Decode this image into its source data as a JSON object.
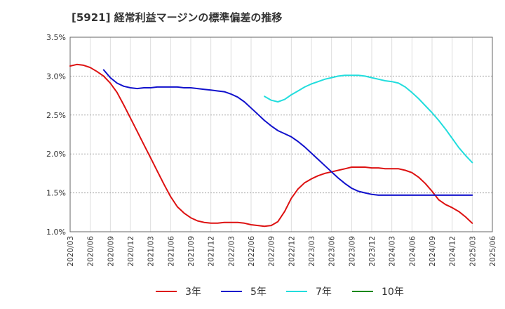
{
  "title": "[5921]  経常利益マージンの標準偏差の推移",
  "chart_data": {
    "type": "line",
    "title": "[5921]  経常利益マージンの標準偏差の推移",
    "xlabel": "",
    "ylabel": "",
    "x": [
      "2020/03",
      "2020/06",
      "2020/09",
      "2020/12",
      "2021/03",
      "2021/06",
      "2021/09",
      "2021/12",
      "2022/03",
      "2022/06",
      "2022/09",
      "2022/12",
      "2023/03",
      "2023/06",
      "2023/09",
      "2023/12",
      "2024/03",
      "2024/06",
      "2024/09",
      "2024/12",
      "2025/03",
      "2025/06"
    ],
    "ylim": [
      1.0,
      3.5
    ],
    "yticks": [
      "1.0%",
      "1.5%",
      "2.0%",
      "2.5%",
      "3.0%",
      "3.5%"
    ],
    "grid": true,
    "legend_position": "bottom",
    "series": [
      {
        "name": "3年",
        "color": "#dd1111",
        "points": [
          [
            "2020/03",
            3.13
          ],
          [
            "2020/04",
            3.15
          ],
          [
            "2020/05",
            3.14
          ],
          [
            "2020/06",
            3.11
          ],
          [
            "2020/07",
            3.06
          ],
          [
            "2020/08",
            3.0
          ],
          [
            "2020/09",
            2.91
          ],
          [
            "2020/10",
            2.79
          ],
          [
            "2020/11",
            2.63
          ],
          [
            "2020/12",
            2.46
          ],
          [
            "2021/01",
            2.29
          ],
          [
            "2021/02",
            2.12
          ],
          [
            "2021/03",
            1.95
          ],
          [
            "2021/04",
            1.78
          ],
          [
            "2021/05",
            1.61
          ],
          [
            "2021/06",
            1.45
          ],
          [
            "2021/07",
            1.32
          ],
          [
            "2021/08",
            1.24
          ],
          [
            "2021/09",
            1.18
          ],
          [
            "2021/10",
            1.14
          ],
          [
            "2021/11",
            1.12
          ],
          [
            "2021/12",
            1.11
          ],
          [
            "2022/01",
            1.11
          ],
          [
            "2022/02",
            1.12
          ],
          [
            "2022/03",
            1.12
          ],
          [
            "2022/04",
            1.12
          ],
          [
            "2022/05",
            1.11
          ],
          [
            "2022/06",
            1.09
          ],
          [
            "2022/07",
            1.08
          ],
          [
            "2022/08",
            1.07
          ],
          [
            "2022/09",
            1.08
          ],
          [
            "2022/10",
            1.13
          ],
          [
            "2022/11",
            1.26
          ],
          [
            "2022/12",
            1.43
          ],
          [
            "2023/01",
            1.55
          ],
          [
            "2023/02",
            1.63
          ],
          [
            "2023/03",
            1.68
          ],
          [
            "2023/04",
            1.72
          ],
          [
            "2023/05",
            1.75
          ],
          [
            "2023/06",
            1.77
          ],
          [
            "2023/07",
            1.79
          ],
          [
            "2023/08",
            1.81
          ],
          [
            "2023/09",
            1.83
          ],
          [
            "2023/10",
            1.83
          ],
          [
            "2023/11",
            1.83
          ],
          [
            "2023/12",
            1.82
          ],
          [
            "2024/01",
            1.82
          ],
          [
            "2024/02",
            1.81
          ],
          [
            "2024/03",
            1.81
          ],
          [
            "2024/04",
            1.81
          ],
          [
            "2024/05",
            1.79
          ],
          [
            "2024/06",
            1.76
          ],
          [
            "2024/07",
            1.7
          ],
          [
            "2024/08",
            1.62
          ],
          [
            "2024/09",
            1.52
          ],
          [
            "2024/10",
            1.41
          ],
          [
            "2024/11",
            1.35
          ],
          [
            "2024/12",
            1.31
          ],
          [
            "2025/01",
            1.26
          ],
          [
            "2025/02",
            1.19
          ],
          [
            "2025/03",
            1.11
          ]
        ]
      },
      {
        "name": "5年",
        "color": "#1111cc",
        "points": [
          [
            "2020/08",
            3.08
          ],
          [
            "2020/09",
            2.98
          ],
          [
            "2020/10",
            2.91
          ],
          [
            "2020/11",
            2.87
          ],
          [
            "2020/12",
            2.85
          ],
          [
            "2021/01",
            2.84
          ],
          [
            "2021/02",
            2.85
          ],
          [
            "2021/03",
            2.85
          ],
          [
            "2021/04",
            2.86
          ],
          [
            "2021/05",
            2.86
          ],
          [
            "2021/06",
            2.86
          ],
          [
            "2021/07",
            2.86
          ],
          [
            "2021/08",
            2.85
          ],
          [
            "2021/09",
            2.85
          ],
          [
            "2021/10",
            2.84
          ],
          [
            "2021/11",
            2.83
          ],
          [
            "2021/12",
            2.82
          ],
          [
            "2022/01",
            2.81
          ],
          [
            "2022/02",
            2.8
          ],
          [
            "2022/03",
            2.77
          ],
          [
            "2022/04",
            2.73
          ],
          [
            "2022/05",
            2.67
          ],
          [
            "2022/06",
            2.59
          ],
          [
            "2022/07",
            2.51
          ],
          [
            "2022/08",
            2.43
          ],
          [
            "2022/09",
            2.36
          ],
          [
            "2022/10",
            2.3
          ],
          [
            "2022/11",
            2.26
          ],
          [
            "2022/12",
            2.22
          ],
          [
            "2023/01",
            2.16
          ],
          [
            "2023/02",
            2.09
          ],
          [
            "2023/03",
            2.01
          ],
          [
            "2023/04",
            1.93
          ],
          [
            "2023/05",
            1.85
          ],
          [
            "2023/06",
            1.77
          ],
          [
            "2023/07",
            1.69
          ],
          [
            "2023/08",
            1.62
          ],
          [
            "2023/09",
            1.56
          ],
          [
            "2023/10",
            1.52
          ],
          [
            "2023/11",
            1.5
          ],
          [
            "2023/12",
            1.48
          ],
          [
            "2024/01",
            1.47
          ],
          [
            "2024/02",
            1.47
          ],
          [
            "2024/03",
            1.47
          ],
          [
            "2024/04",
            1.47
          ],
          [
            "2024/05",
            1.47
          ],
          [
            "2024/06",
            1.47
          ],
          [
            "2024/07",
            1.47
          ],
          [
            "2024/08",
            1.47
          ],
          [
            "2024/09",
            1.47
          ],
          [
            "2024/10",
            1.47
          ],
          [
            "2024/11",
            1.47
          ],
          [
            "2024/12",
            1.47
          ],
          [
            "2025/01",
            1.47
          ],
          [
            "2025/02",
            1.47
          ],
          [
            "2025/03",
            1.47
          ]
        ]
      },
      {
        "name": "7年",
        "color": "#22dddd",
        "points": [
          [
            "2022/08",
            2.74
          ],
          [
            "2022/09",
            2.69
          ],
          [
            "2022/10",
            2.67
          ],
          [
            "2022/11",
            2.7
          ],
          [
            "2022/12",
            2.76
          ],
          [
            "2023/01",
            2.81
          ],
          [
            "2023/02",
            2.86
          ],
          [
            "2023/03",
            2.9
          ],
          [
            "2023/04",
            2.93
          ],
          [
            "2023/05",
            2.96
          ],
          [
            "2023/06",
            2.98
          ],
          [
            "2023/07",
            3.0
          ],
          [
            "2023/08",
            3.01
          ],
          [
            "2023/09",
            3.01
          ],
          [
            "2023/10",
            3.01
          ],
          [
            "2023/11",
            3.0
          ],
          [
            "2023/12",
            2.98
          ],
          [
            "2024/01",
            2.96
          ],
          [
            "2024/02",
            2.94
          ],
          [
            "2024/03",
            2.93
          ],
          [
            "2024/04",
            2.91
          ],
          [
            "2024/05",
            2.86
          ],
          [
            "2024/06",
            2.79
          ],
          [
            "2024/07",
            2.71
          ],
          [
            "2024/08",
            2.62
          ],
          [
            "2024/09",
            2.53
          ],
          [
            "2024/10",
            2.43
          ],
          [
            "2024/11",
            2.32
          ],
          [
            "2024/12",
            2.2
          ],
          [
            "2025/01",
            2.08
          ],
          [
            "2025/02",
            1.98
          ],
          [
            "2025/03",
            1.89
          ]
        ]
      },
      {
        "name": "10年",
        "color": "#118811",
        "points": []
      }
    ]
  }
}
